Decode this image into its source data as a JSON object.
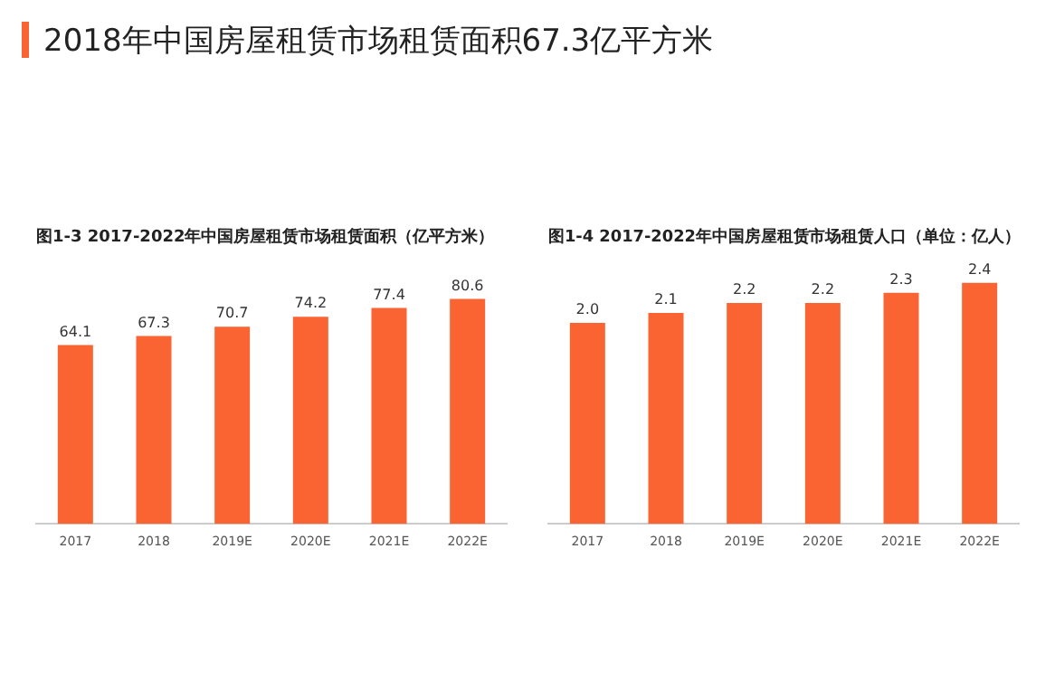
{
  "chart_data": [
    {
      "type": "other",
      "title": "2018年中国房屋租赁市场租赁面积67.3亿平方米"
    },
    {
      "type": "bar",
      "title": "图1-3 2017-2022年中国房屋租赁市场租赁面积（亿平方米）",
      "categories": [
        "2017",
        "2018",
        "2019E",
        "2020E",
        "2021E",
        "2022E"
      ],
      "values": [
        64.1,
        67.3,
        70.7,
        74.2,
        77.4,
        80.6
      ],
      "color": "#fa6433",
      "tick_labels": "x",
      "data_labels": true,
      "grid": false,
      "legend": false
    },
    {
      "type": "bar",
      "title": "图1-4 2017-2022年中国房屋租赁市场租赁人口（单位：亿人）",
      "categories": [
        "2017",
        "2018",
        "2019E",
        "2020E",
        "2021E",
        "2022E"
      ],
      "values": [
        2.0,
        2.1,
        2.2,
        2.2,
        2.3,
        2.4
      ],
      "value_labels": [
        "2.0",
        "2.1",
        "2.2",
        "2.2",
        "2.3",
        "2.4"
      ],
      "color": "#fa6433",
      "tick_labels": "x",
      "grid": false,
      "legend": false
    }
  ]
}
